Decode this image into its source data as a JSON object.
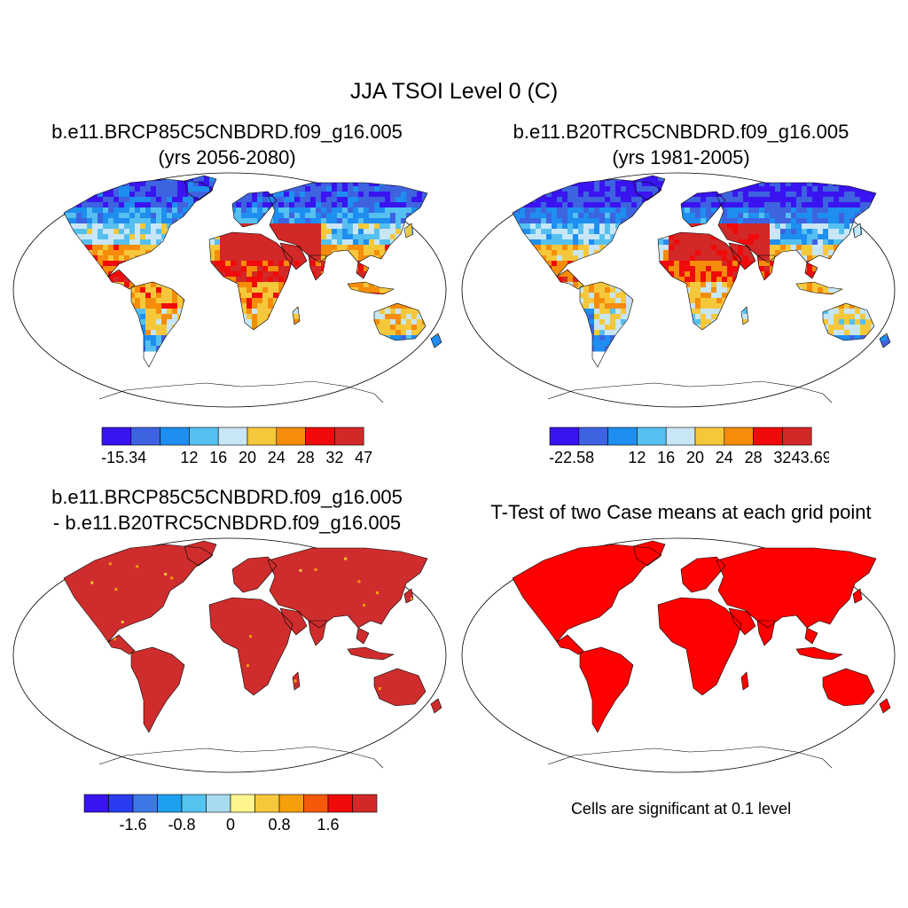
{
  "title": "JJA TSOI Level 0 (C)",
  "panels": [
    {
      "title_line1": "b.e11.BRCP85C5CNBDRD.f09_g16.005",
      "title_line2": "(yrs 2056-2080)",
      "style": "tsoi_future",
      "colorbar": {
        "colors": [
          "#3a14f0",
          "#3d63e0",
          "#1e8ef0",
          "#55c0f0",
          "#c8e6f5",
          "#f5c83c",
          "#f58c0a",
          "#f00a0a",
          "#d22828"
        ],
        "labels": [
          "-15.34",
          "12",
          "16",
          "20",
          "24",
          "28",
          "32",
          "47"
        ]
      }
    },
    {
      "title_line1": "b.e11.B20TRC5CNBDRD.f09_g16.005",
      "title_line2": "(yrs 1981-2005)",
      "style": "tsoi_past",
      "colorbar": {
        "colors": [
          "#3a14f0",
          "#3d63e0",
          "#1e8ef0",
          "#55c0f0",
          "#c8e6f5",
          "#f5c83c",
          "#f58c0a",
          "#f00a0a",
          "#d22828"
        ],
        "labels": [
          "-22.58",
          "12",
          "16",
          "20",
          "24",
          "28",
          "32",
          "43.69"
        ]
      }
    },
    {
      "title_line1": "b.e11.BRCP85C5CNBDRD.f09_g16.005",
      "title_line2": "- b.e11.B20TRC5CNBDRD.f09_g16.005",
      "style": "difference",
      "fill_color": "#cf2d2d",
      "colorbar": {
        "colors": [
          "#3a14f0",
          "#2a3cf0",
          "#3d78e6",
          "#1ea0f0",
          "#55c3f0",
          "#a8daf0",
          "#fff58c",
          "#f5c83c",
          "#f5a00a",
          "#f55a0a",
          "#f00a0a",
          "#d22828"
        ],
        "labels": [
          "-1.6",
          "-0.8",
          "0",
          "0.8",
          "1.6"
        ]
      }
    },
    {
      "title_line1": "T-Test of two Case means at each grid point",
      "title_line2": "",
      "style": "ttest",
      "fill_color": "#ff0000",
      "note": "Cells are significant at 0.1 level"
    }
  ]
}
